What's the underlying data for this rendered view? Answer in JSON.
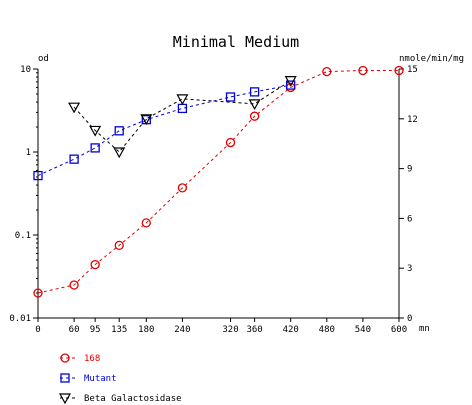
{
  "chart_data": {
    "type": "line",
    "title": "Minimal Medium",
    "xlabel": "mn",
    "ylabel_left": "od",
    "ylabel_right": "nmole/min/mg",
    "x_ticks": [
      0,
      60,
      95,
      135,
      180,
      240,
      320,
      360,
      420,
      480,
      540,
      600
    ],
    "x_tick_labels": [
      "0",
      "60",
      "95",
      "135",
      "180",
      "240",
      "320",
      "360",
      "420",
      "480",
      "540",
      "600"
    ],
    "xlim": [
      0,
      600
    ],
    "y_left": {
      "scale": "log",
      "lim": [
        0.01,
        10
      ],
      "ticks": [
        0.01,
        0.1,
        1,
        10
      ],
      "tick_labels": [
        "0.01",
        "0.1",
        "1",
        "10"
      ]
    },
    "y_right": {
      "scale": "linear",
      "lim": [
        0,
        15
      ],
      "ticks": [
        0,
        3,
        6,
        9,
        12,
        15
      ],
      "tick_labels": [
        "0",
        "3",
        "6",
        "9",
        "12",
        "15"
      ]
    },
    "grid": false,
    "legend_position": "bottom-left",
    "series": [
      {
        "name": "168",
        "axis": "left",
        "marker": "circle",
        "color": "#e00000",
        "x": [
          0,
          60,
          95,
          135,
          180,
          240,
          320,
          360,
          420,
          480,
          540,
          600
        ],
        "y": [
          0.02,
          0.025,
          0.044,
          0.075,
          0.14,
          0.37,
          1.3,
          2.7,
          6.0,
          9.3,
          9.6,
          9.6
        ]
      },
      {
        "name": "Mutant",
        "axis": "left",
        "marker": "square",
        "color": "#0000e0",
        "x": [
          0,
          60,
          95,
          135,
          180,
          240,
          320,
          360,
          420
        ],
        "y": [
          0.52,
          0.82,
          1.12,
          1.8,
          2.45,
          3.35,
          4.6,
          5.3,
          6.4
        ]
      },
      {
        "name": "Beta Galactosidase",
        "axis": "right",
        "marker": "triangle-down",
        "color": "#000000",
        "x": [
          60,
          95,
          135,
          180,
          240,
          360,
          420
        ],
        "y": [
          12.7,
          11.3,
          10.0,
          12.0,
          13.2,
          12.9,
          14.3
        ]
      }
    ]
  }
}
